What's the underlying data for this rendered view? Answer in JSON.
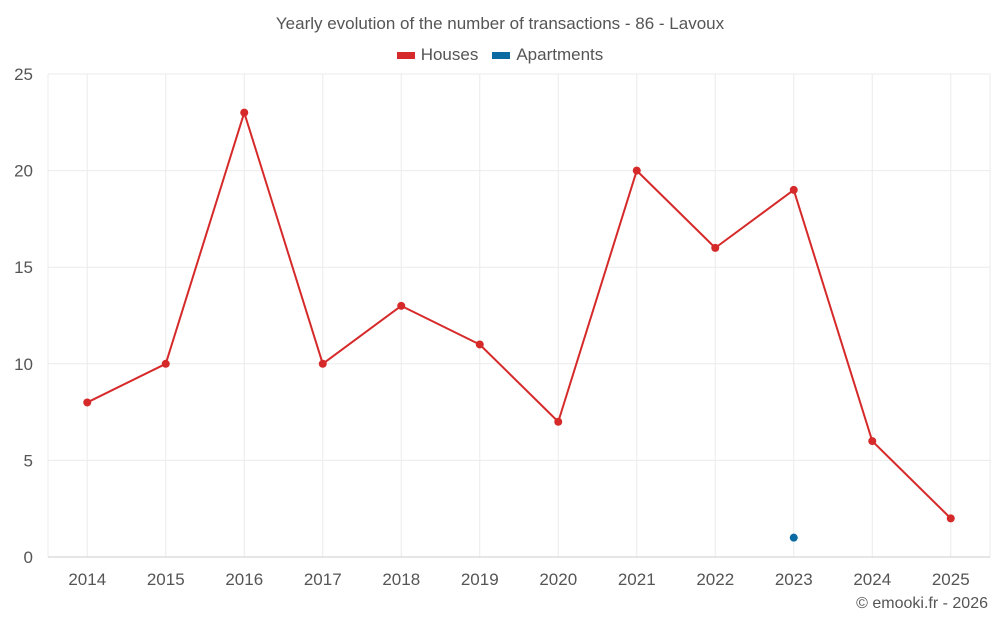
{
  "colors": {
    "houses": "#d62a2a",
    "apartments": "#0a6aa1",
    "grid": "#ebebeb",
    "axis": "#cccccc"
  },
  "footer": {
    "credit": "© emooki.fr - 2026"
  },
  "chart_data": {
    "type": "line",
    "title": "Yearly evolution of the number of transactions - 86 - Lavoux",
    "categories": [
      "2014",
      "2015",
      "2016",
      "2017",
      "2018",
      "2019",
      "2020",
      "2021",
      "2022",
      "2023",
      "2024",
      "2025"
    ],
    "series": [
      {
        "name": "Houses",
        "color": "#d62a2a",
        "values": [
          8,
          10,
          23,
          10,
          13,
          11,
          7,
          20,
          16,
          19,
          6,
          2
        ]
      },
      {
        "name": "Apartments",
        "color": "#0a6aa1",
        "values": [
          null,
          null,
          null,
          null,
          null,
          null,
          null,
          null,
          null,
          1,
          null,
          null
        ]
      }
    ],
    "yticks": [
      0,
      5,
      10,
      15,
      20,
      25
    ],
    "ylim": [
      0,
      25
    ],
    "xlabel": "",
    "ylabel": "",
    "legend_position": "top-center",
    "grid": true
  }
}
